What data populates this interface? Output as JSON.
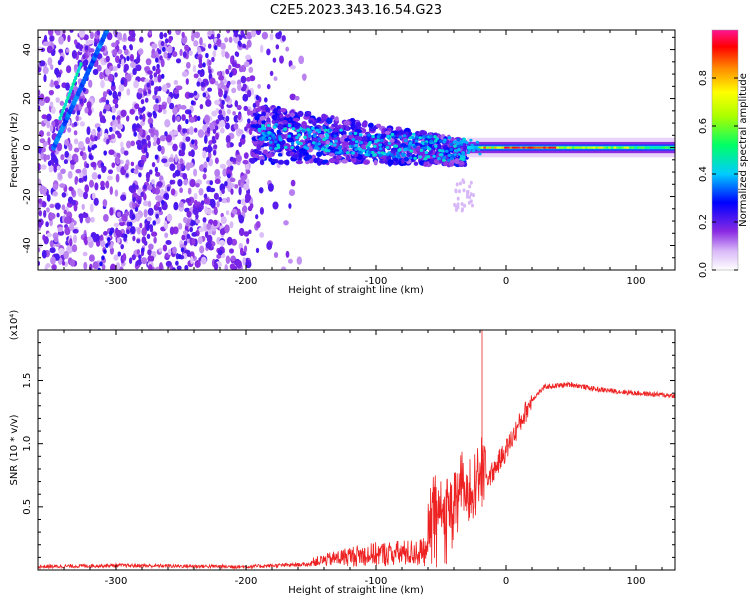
{
  "title": "C2E5.2023.343.16.54.G23",
  "chart_data": [
    {
      "type": "heatmap",
      "xlabel": "Height of straight line (km)",
      "ylabel": "Frequency (Hz)",
      "xlim": [
        -360,
        130
      ],
      "ylim": [
        -50,
        48
      ],
      "xticks": [
        -300,
        -200,
        -100,
        0,
        100
      ],
      "xtick_labels": [
        "-300",
        "-200",
        "-100",
        "0",
        "100"
      ],
      "yticks": [
        -40,
        -20,
        0,
        20,
        40
      ],
      "ytick_labels": [
        "-40",
        "-20",
        "0",
        "20",
        "40"
      ],
      "colorbar": {
        "label": "Normalized spectral amplitude",
        "range": [
          0,
          1
        ],
        "ticks": [
          0.0,
          0.2,
          0.4,
          0.6,
          0.8
        ],
        "tick_labels": [
          "0.0",
          "0.2",
          "0.4",
          "0.6",
          "0.8"
        ],
        "colors": [
          "#ffffff",
          "#8a2be2",
          "#0000ff",
          "#00ffff",
          "#00ff00",
          "#ffff00",
          "#ff8c00",
          "#ff0000",
          "#ff1493"
        ]
      },
      "features": [
        {
          "name": "diagonal streak",
          "x": [
            -348,
            -308
          ],
          "y": [
            0,
            48
          ]
        },
        {
          "name": "noise region",
          "x": [
            -360,
            -155
          ],
          "y": [
            -50,
            48
          ]
        },
        {
          "name": "scatter band",
          "x": [
            -195,
            -30
          ],
          "y": [
            -12,
            12
          ]
        },
        {
          "name": "narrow signal",
          "x": [
            -30,
            130
          ],
          "y": [
            -2,
            2
          ]
        }
      ]
    },
    {
      "type": "line",
      "xlabel": "Height of straight line (km)",
      "ylabel": "SNR (10 * v/v)",
      "y_multiplier": "(x10⁴)",
      "xlim": [
        -360,
        130
      ],
      "ylim": [
        0,
        1.9
      ],
      "xticks": [
        -300,
        -200,
        -100,
        0,
        100
      ],
      "xtick_labels": [
        "-300",
        "-200",
        "-100",
        "0",
        "100"
      ],
      "yticks": [
        0.5,
        1.0,
        1.5
      ],
      "ytick_labels": [
        "0.5",
        "1.0",
        "1.5"
      ],
      "color": "#ee2222",
      "x": [
        -360,
        -300,
        -200,
        -150,
        -120,
        -100,
        -80,
        -60,
        -50,
        -40,
        -30,
        -20,
        -10,
        0,
        10,
        20,
        30,
        50,
        70,
        90,
        100,
        130
      ],
      "y": [
        0.02,
        0.03,
        0.02,
        0.04,
        0.1,
        0.12,
        0.13,
        0.14,
        0.25,
        0.35,
        0.5,
        0.65,
        0.78,
        0.95,
        1.15,
        1.35,
        1.45,
        1.47,
        1.43,
        1.41,
        1.4,
        1.38
      ]
    }
  ]
}
